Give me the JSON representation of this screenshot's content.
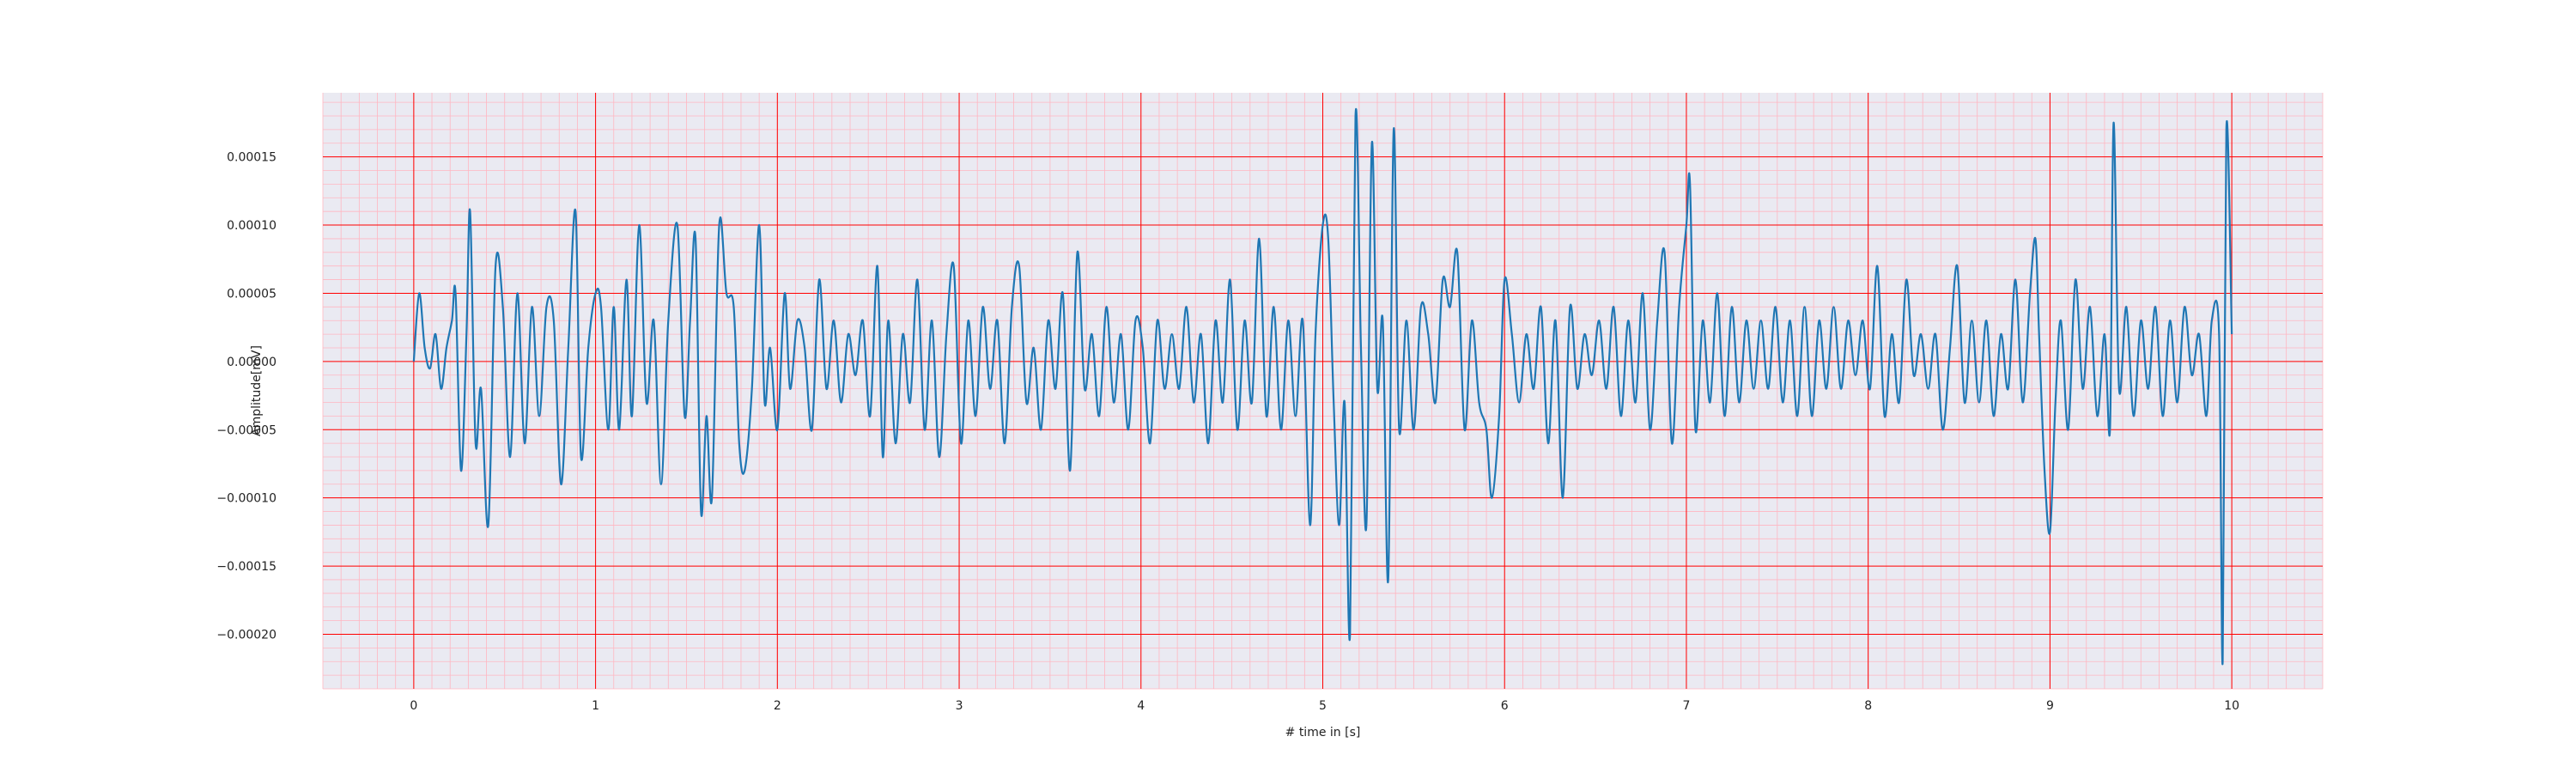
{
  "chart_data": {
    "type": "line",
    "title": "",
    "xlabel": "# time in [s]",
    "ylabel": "Amplitude[mV]",
    "xlim": [
      -0.5,
      10.5
    ],
    "ylim": [
      -0.00024,
      0.000197
    ],
    "xticks": [
      0,
      1,
      2,
      3,
      4,
      5,
      6,
      7,
      8,
      9,
      10
    ],
    "xtick_labels": [
      "0",
      "1",
      "2",
      "3",
      "4",
      "5",
      "6",
      "7",
      "8",
      "9",
      "10"
    ],
    "yticks": [
      -0.0002,
      -0.00015,
      -0.0001,
      -5e-05,
      0,
      5e-05,
      0.0001,
      0.00015
    ],
    "ytick_labels": [
      "−0.00020",
      "−0.00015",
      "−0.00010",
      "−0.00005",
      "0.00000",
      "0.00005",
      "0.00010",
      "0.00015"
    ],
    "grid": true,
    "minor_grid": true,
    "colors": {
      "line": "#1f77b4",
      "plot_background": "#eaeaf2",
      "major_grid": "#ff0000",
      "minor_grid": "#ffb6c1"
    },
    "series": [
      {
        "values": [
          [
            0.0,
            0.0
          ],
          [
            0.03,
            5e-05
          ],
          [
            0.06,
            1e-05
          ],
          [
            0.09,
            -5e-06
          ],
          [
            0.12,
            2e-05
          ],
          [
            0.15,
            -2e-05
          ],
          [
            0.18,
            1e-05
          ],
          [
            0.21,
            3e-05
          ],
          [
            0.23,
            5e-05
          ],
          [
            0.26,
            -8e-05
          ],
          [
            0.29,
            2e-05
          ],
          [
            0.31,
            0.00011
          ],
          [
            0.34,
            -6e-05
          ],
          [
            0.37,
            -2e-05
          ],
          [
            0.41,
            -0.00012
          ],
          [
            0.45,
            7e-05
          ],
          [
            0.49,
            4e-05
          ],
          [
            0.53,
            -7e-05
          ],
          [
            0.57,
            5e-05
          ],
          [
            0.61,
            -6e-05
          ],
          [
            0.65,
            4e-05
          ],
          [
            0.69,
            -4e-05
          ],
          [
            0.73,
            4e-05
          ],
          [
            0.77,
            3e-05
          ],
          [
            0.81,
            -9e-05
          ],
          [
            0.85,
            1e-05
          ],
          [
            0.89,
            0.00011
          ],
          [
            0.92,
            -7e-05
          ],
          [
            0.96,
            1e-05
          ],
          [
            1.0,
            5e-05
          ],
          [
            1.03,
            4e-05
          ],
          [
            1.07,
            -5e-05
          ],
          [
            1.1,
            4e-05
          ],
          [
            1.13,
            -5e-05
          ],
          [
            1.17,
            6e-05
          ],
          [
            1.2,
            -4e-05
          ],
          [
            1.24,
            0.0001
          ],
          [
            1.28,
            -3e-05
          ],
          [
            1.32,
            3e-05
          ],
          [
            1.36,
            -9e-05
          ],
          [
            1.4,
            3e-05
          ],
          [
            1.45,
            0.0001
          ],
          [
            1.49,
            -4e-05
          ],
          [
            1.52,
            3e-05
          ],
          [
            1.55,
            9e-05
          ],
          [
            1.58,
            -0.00011
          ],
          [
            1.61,
            -4e-05
          ],
          [
            1.64,
            -0.0001
          ],
          [
            1.68,
            0.0001
          ],
          [
            1.72,
            5e-05
          ],
          [
            1.76,
            4e-05
          ],
          [
            1.79,
            -6e-05
          ],
          [
            1.82,
            -8e-05
          ],
          [
            1.86,
            -2e-05
          ],
          [
            1.9,
            0.0001
          ],
          [
            1.93,
            -3e-05
          ],
          [
            1.96,
            1e-05
          ],
          [
            2.0,
            -5e-05
          ],
          [
            2.04,
            5e-05
          ],
          [
            2.07,
            -2e-05
          ],
          [
            2.11,
            3e-05
          ],
          [
            2.15,
            1e-05
          ],
          [
            2.19,
            -5e-05
          ],
          [
            2.23,
            6e-05
          ],
          [
            2.27,
            -2e-05
          ],
          [
            2.31,
            3e-05
          ],
          [
            2.35,
            -3e-05
          ],
          [
            2.39,
            2e-05
          ],
          [
            2.43,
            -1e-05
          ],
          [
            2.47,
            3e-05
          ],
          [
            2.51,
            -4e-05
          ],
          [
            2.55,
            7e-05
          ],
          [
            2.58,
            -7e-05
          ],
          [
            2.61,
            3e-05
          ],
          [
            2.65,
            -6e-05
          ],
          [
            2.69,
            2e-05
          ],
          [
            2.73,
            -3e-05
          ],
          [
            2.77,
            6e-05
          ],
          [
            2.81,
            -5e-05
          ],
          [
            2.85,
            3e-05
          ],
          [
            2.89,
            -7e-05
          ],
          [
            2.93,
            2e-05
          ],
          [
            2.97,
            7e-05
          ],
          [
            3.01,
            -6e-05
          ],
          [
            3.05,
            3e-05
          ],
          [
            3.09,
            -4e-05
          ],
          [
            3.13,
            4e-05
          ],
          [
            3.17,
            -2e-05
          ],
          [
            3.21,
            3e-05
          ],
          [
            3.25,
            -6e-05
          ],
          [
            3.29,
            4e-05
          ],
          [
            3.33,
            7e-05
          ],
          [
            3.37,
            -3e-05
          ],
          [
            3.41,
            1e-05
          ],
          [
            3.45,
            -5e-05
          ],
          [
            3.49,
            3e-05
          ],
          [
            3.53,
            -2e-05
          ],
          [
            3.57,
            5e-05
          ],
          [
            3.61,
            -8e-05
          ],
          [
            3.65,
            8e-05
          ],
          [
            3.69,
            -2e-05
          ],
          [
            3.73,
            2e-05
          ],
          [
            3.77,
            -4e-05
          ],
          [
            3.81,
            4e-05
          ],
          [
            3.85,
            -3e-05
          ],
          [
            3.89,
            2e-05
          ],
          [
            3.93,
            -5e-05
          ],
          [
            3.97,
            3e-05
          ],
          [
            4.01,
            1e-05
          ],
          [
            4.05,
            -6e-05
          ],
          [
            4.09,
            3e-05
          ],
          [
            4.13,
            -2e-05
          ],
          [
            4.17,
            2e-05
          ],
          [
            4.21,
            -2e-05
          ],
          [
            4.25,
            4e-05
          ],
          [
            4.29,
            -3e-05
          ],
          [
            4.33,
            2e-05
          ],
          [
            4.37,
            -6e-05
          ],
          [
            4.41,
            3e-05
          ],
          [
            4.45,
            -3e-05
          ],
          [
            4.49,
            6e-05
          ],
          [
            4.53,
            -5e-05
          ],
          [
            4.57,
            3e-05
          ],
          [
            4.61,
            -3e-05
          ],
          [
            4.65,
            9e-05
          ],
          [
            4.69,
            -4e-05
          ],
          [
            4.73,
            4e-05
          ],
          [
            4.77,
            -5e-05
          ],
          [
            4.81,
            3e-05
          ],
          [
            4.85,
            -4e-05
          ],
          [
            4.89,
            3e-05
          ],
          [
            4.93,
            -0.00012
          ],
          [
            4.96,
            2e-05
          ],
          [
            5.0,
            0.0001
          ],
          [
            5.03,
            9e-05
          ],
          [
            5.06,
            -3e-05
          ],
          [
            5.09,
            -0.00012
          ],
          [
            5.12,
            -3e-05
          ],
          [
            5.15,
            -0.0002
          ],
          [
            5.18,
            0.00018
          ],
          [
            5.21,
            1e-05
          ],
          [
            5.24,
            -0.00012
          ],
          [
            5.27,
            0.00016
          ],
          [
            5.3,
            -2e-05
          ],
          [
            5.33,
            3e-05
          ],
          [
            5.36,
            -0.00016
          ],
          [
            5.39,
            0.00017
          ],
          [
            5.42,
            -5e-05
          ],
          [
            5.46,
            3e-05
          ],
          [
            5.5,
            -5e-05
          ],
          [
            5.54,
            4e-05
          ],
          [
            5.58,
            2e-05
          ],
          [
            5.62,
            -3e-05
          ],
          [
            5.66,
            6e-05
          ],
          [
            5.7,
            4e-05
          ],
          [
            5.74,
            8e-05
          ],
          [
            5.78,
            -5e-05
          ],
          [
            5.82,
            3e-05
          ],
          [
            5.86,
            -3e-05
          ],
          [
            5.9,
            -5e-05
          ],
          [
            5.93,
            -0.0001
          ],
          [
            5.97,
            -4e-05
          ],
          [
            6.0,
            6e-05
          ],
          [
            6.04,
            2e-05
          ],
          [
            6.08,
            -3e-05
          ],
          [
            6.12,
            2e-05
          ],
          [
            6.16,
            -2e-05
          ],
          [
            6.2,
            4e-05
          ],
          [
            6.24,
            -6e-05
          ],
          [
            6.28,
            3e-05
          ],
          [
            6.32,
            -0.0001
          ],
          [
            6.36,
            4e-05
          ],
          [
            6.4,
            -2e-05
          ],
          [
            6.44,
            2e-05
          ],
          [
            6.48,
            -1e-05
          ],
          [
            6.52,
            3e-05
          ],
          [
            6.56,
            -2e-05
          ],
          [
            6.6,
            4e-05
          ],
          [
            6.64,
            -4e-05
          ],
          [
            6.68,
            3e-05
          ],
          [
            6.72,
            -3e-05
          ],
          [
            6.76,
            5e-05
          ],
          [
            6.8,
            -5e-05
          ],
          [
            6.84,
            3e-05
          ],
          [
            6.88,
            8e-05
          ],
          [
            6.92,
            -6e-05
          ],
          [
            6.96,
            4e-05
          ],
          [
            7.0,
            0.0001
          ],
          [
            7.02,
            0.00013
          ],
          [
            7.05,
            -5e-05
          ],
          [
            7.09,
            3e-05
          ],
          [
            7.13,
            -3e-05
          ],
          [
            7.17,
            5e-05
          ],
          [
            7.21,
            -4e-05
          ],
          [
            7.25,
            4e-05
          ],
          [
            7.29,
            -3e-05
          ],
          [
            7.33,
            3e-05
          ],
          [
            7.37,
            -2e-05
          ],
          [
            7.41,
            3e-05
          ],
          [
            7.45,
            -2e-05
          ],
          [
            7.49,
            4e-05
          ],
          [
            7.53,
            -3e-05
          ],
          [
            7.57,
            3e-05
          ],
          [
            7.61,
            -4e-05
          ],
          [
            7.65,
            4e-05
          ],
          [
            7.69,
            -4e-05
          ],
          [
            7.73,
            3e-05
          ],
          [
            7.77,
            -2e-05
          ],
          [
            7.81,
            4e-05
          ],
          [
            7.85,
            -2e-05
          ],
          [
            7.89,
            3e-05
          ],
          [
            7.93,
            -1e-05
          ],
          [
            7.97,
            3e-05
          ],
          [
            8.01,
            -2e-05
          ],
          [
            8.05,
            7e-05
          ],
          [
            8.09,
            -4e-05
          ],
          [
            8.13,
            2e-05
          ],
          [
            8.17,
            -3e-05
          ],
          [
            8.21,
            6e-05
          ],
          [
            8.25,
            -1e-05
          ],
          [
            8.29,
            2e-05
          ],
          [
            8.33,
            -2e-05
          ],
          [
            8.37,
            2e-05
          ],
          [
            8.41,
            -5e-05
          ],
          [
            8.45,
            1e-05
          ],
          [
            8.49,
            7e-05
          ],
          [
            8.53,
            -3e-05
          ],
          [
            8.57,
            3e-05
          ],
          [
            8.61,
            -3e-05
          ],
          [
            8.65,
            3e-05
          ],
          [
            8.69,
            -4e-05
          ],
          [
            8.73,
            2e-05
          ],
          [
            8.77,
            -2e-05
          ],
          [
            8.81,
            6e-05
          ],
          [
            8.85,
            -3e-05
          ],
          [
            8.89,
            5e-05
          ],
          [
            8.92,
            9e-05
          ],
          [
            8.94,
            2e-05
          ],
          [
            8.97,
            -8e-05
          ],
          [
            9.0,
            -0.000125
          ],
          [
            9.03,
            -3e-05
          ],
          [
            9.06,
            3e-05
          ],
          [
            9.1,
            -5e-05
          ],
          [
            9.14,
            6e-05
          ],
          [
            9.18,
            -2e-05
          ],
          [
            9.22,
            4e-05
          ],
          [
            9.26,
            -4e-05
          ],
          [
            9.3,
            2e-05
          ],
          [
            9.33,
            -5e-05
          ],
          [
            9.35,
            0.000175
          ],
          [
            9.38,
            -2e-05
          ],
          [
            9.42,
            4e-05
          ],
          [
            9.46,
            -4e-05
          ],
          [
            9.5,
            3e-05
          ],
          [
            9.54,
            -2e-05
          ],
          [
            9.58,
            4e-05
          ],
          [
            9.62,
            -4e-05
          ],
          [
            9.66,
            3e-05
          ],
          [
            9.7,
            -3e-05
          ],
          [
            9.74,
            4e-05
          ],
          [
            9.78,
            -1e-05
          ],
          [
            9.82,
            2e-05
          ],
          [
            9.86,
            -4e-05
          ],
          [
            9.89,
            3e-05
          ],
          [
            9.93,
            2e-05
          ],
          [
            9.95,
            -0.00022
          ],
          [
            9.97,
            0.00017
          ],
          [
            10.0,
            2e-05
          ]
        ]
      }
    ]
  }
}
